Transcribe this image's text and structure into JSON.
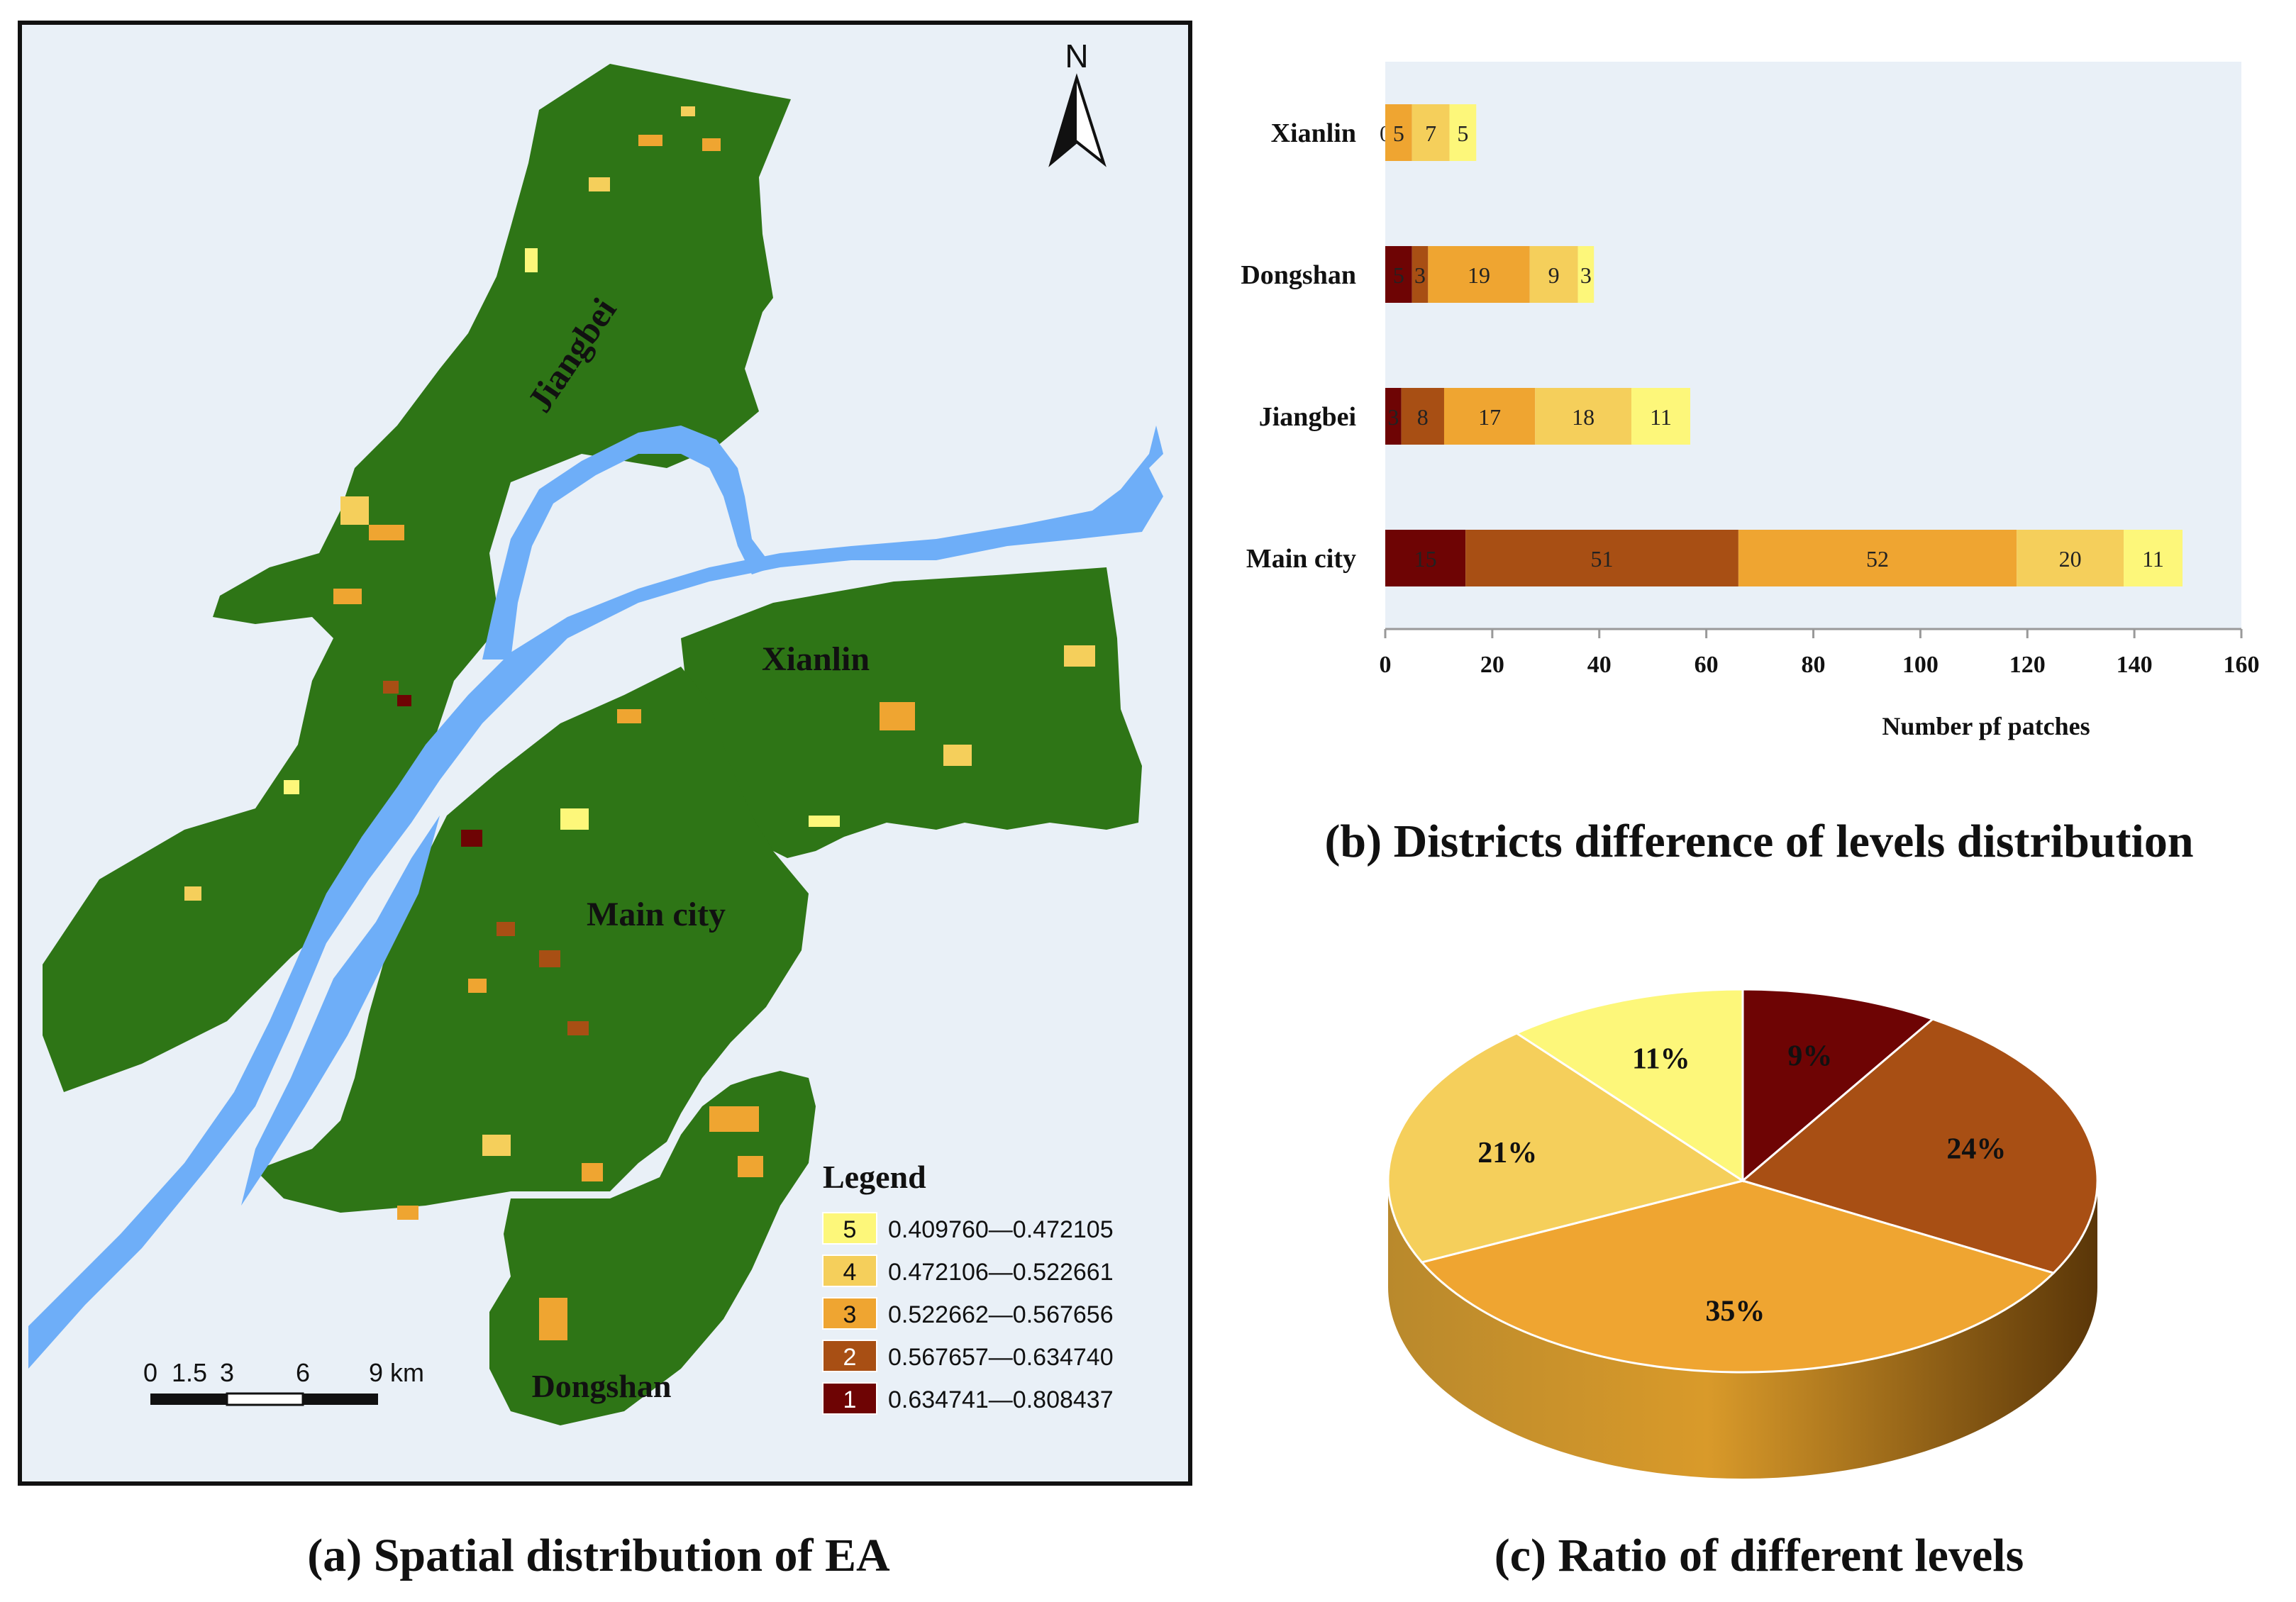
{
  "panel_a": {
    "caption": "(a) Spatial distribution of EA",
    "north_label": "N",
    "district_labels": [
      "Jiangbei",
      "Xianlin",
      "Main city",
      "Dongshan"
    ],
    "scale_ticks": [
      "0",
      "1.5",
      "3",
      "6",
      "9 km"
    ],
    "legend_title": "Legend",
    "legend": [
      {
        "level": "5",
        "range": "0.409760—0.472105",
        "color": "#fdf77a"
      },
      {
        "level": "4",
        "range": "0.472106—0.522661",
        "color": "#f5cf5b"
      },
      {
        "level": "3",
        "range": "0.522662—0.567656",
        "color": "#efa531"
      },
      {
        "level": "2",
        "range": "0.567657—0.634740",
        "color": "#a84f14"
      },
      {
        "level": "1",
        "range": "0.634741—0.808437",
        "color": "#6e0404"
      }
    ],
    "colors": {
      "land": "#2e7516",
      "water": "#6eaef8",
      "background": "#e9f0f7"
    }
  },
  "chart_data": [
    {
      "type": "bar",
      "orientation": "horizontal",
      "stacked": true,
      "title": "(b) Districts difference of levels distribution",
      "xlabel": "Number pf patches",
      "xlim": [
        0,
        160
      ],
      "xticks": [
        "0",
        "20",
        "40",
        "60",
        "80",
        "100",
        "120",
        "140",
        "160"
      ],
      "categories": [
        "Xianlin",
        "Dongshan",
        "Jiangbei",
        "Main  city"
      ],
      "series": [
        {
          "values": [
            0,
            5,
            3,
            15
          ],
          "labels": [
            "0",
            "5",
            "3",
            "15"
          ],
          "color": "#6e0404"
        },
        {
          "values": [
            0,
            3,
            8,
            51
          ],
          "labels": [
            "",
            "3",
            "8",
            "51"
          ],
          "color": "#a84f14"
        },
        {
          "values": [
            5,
            19,
            17,
            52
          ],
          "labels": [
            "5",
            "19",
            "17",
            "52"
          ],
          "color": "#efa531"
        },
        {
          "values": [
            7,
            9,
            18,
            20
          ],
          "labels": [
            "7",
            "9",
            "18",
            "20"
          ],
          "color": "#f5cf5b"
        },
        {
          "values": [
            5,
            3,
            11,
            11
          ],
          "labels": [
            "5",
            "3",
            "11",
            "11"
          ],
          "color": "#fdf77a"
        }
      ],
      "grid": false,
      "background": "#e9f0f7"
    },
    {
      "type": "pie",
      "style": "3d",
      "title": "(c) Ratio of different levels",
      "slices": [
        {
          "label": "9%",
          "value": 9,
          "color": "#6e0404"
        },
        {
          "label": "24%",
          "value": 24,
          "color": "#a84f14"
        },
        {
          "label": "35%",
          "value": 35,
          "color": "#efa531"
        },
        {
          "label": "21%",
          "value": 21,
          "color": "#f5cf5b"
        },
        {
          "label": "11%",
          "value": 11,
          "color": "#fdf77a"
        }
      ]
    }
  ]
}
